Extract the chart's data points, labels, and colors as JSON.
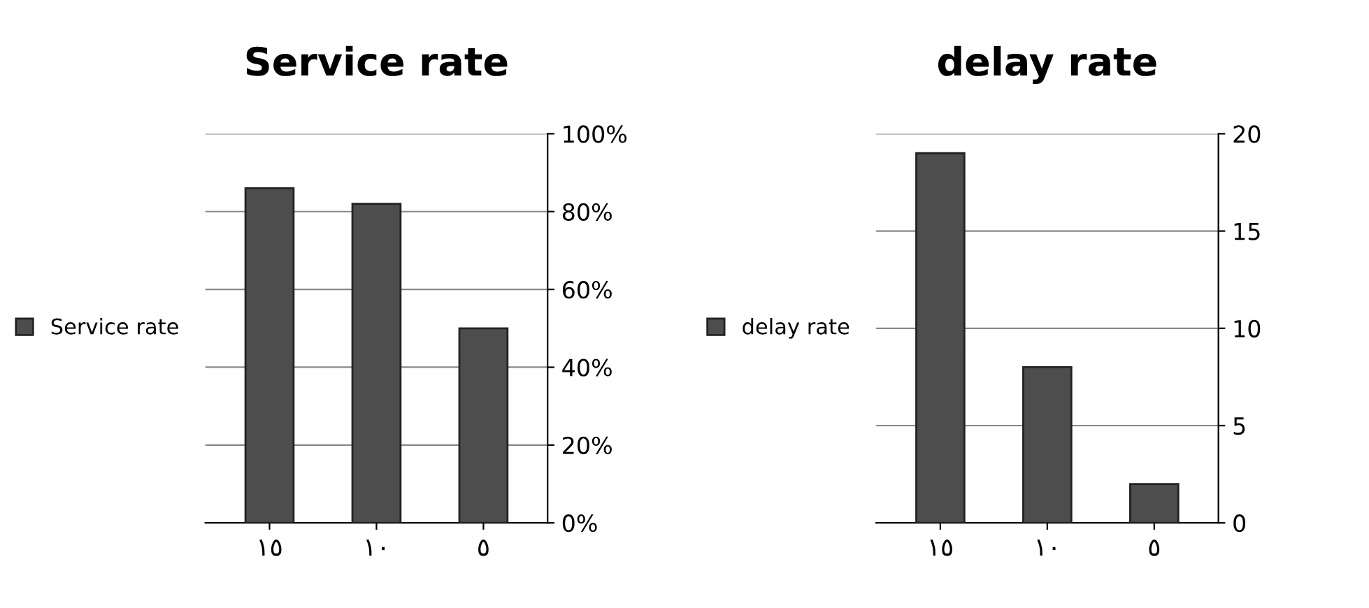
{
  "chart_data": [
    {
      "type": "bar",
      "title": "Service rate",
      "categories": [
        "١٥",
        "١٠",
        "٥"
      ],
      "series": [
        {
          "name": "Service rate",
          "color": "#4d4d4d",
          "values": [
            86,
            82,
            50
          ]
        }
      ],
      "ylim": [
        0,
        100
      ],
      "yticks": [
        {
          "value": 0,
          "label": "0%"
        },
        {
          "value": 20,
          "label": "20%"
        },
        {
          "value": 40,
          "label": "40%"
        },
        {
          "value": 60,
          "label": "60%"
        },
        {
          "value": 80,
          "label": "80%"
        },
        {
          "value": 100,
          "label": "100%"
        }
      ],
      "grid": "y",
      "legend": "left"
    },
    {
      "type": "bar",
      "title": "delay rate",
      "categories": [
        "١٥",
        "١٠",
        "٥"
      ],
      "series": [
        {
          "name": "delay rate",
          "color": "#4d4d4d",
          "values": [
            19,
            8,
            2
          ]
        }
      ],
      "ylim": [
        0,
        20
      ],
      "yticks": [
        0,
        5,
        10,
        15,
        20
      ],
      "grid": "y",
      "legend": "left"
    }
  ]
}
